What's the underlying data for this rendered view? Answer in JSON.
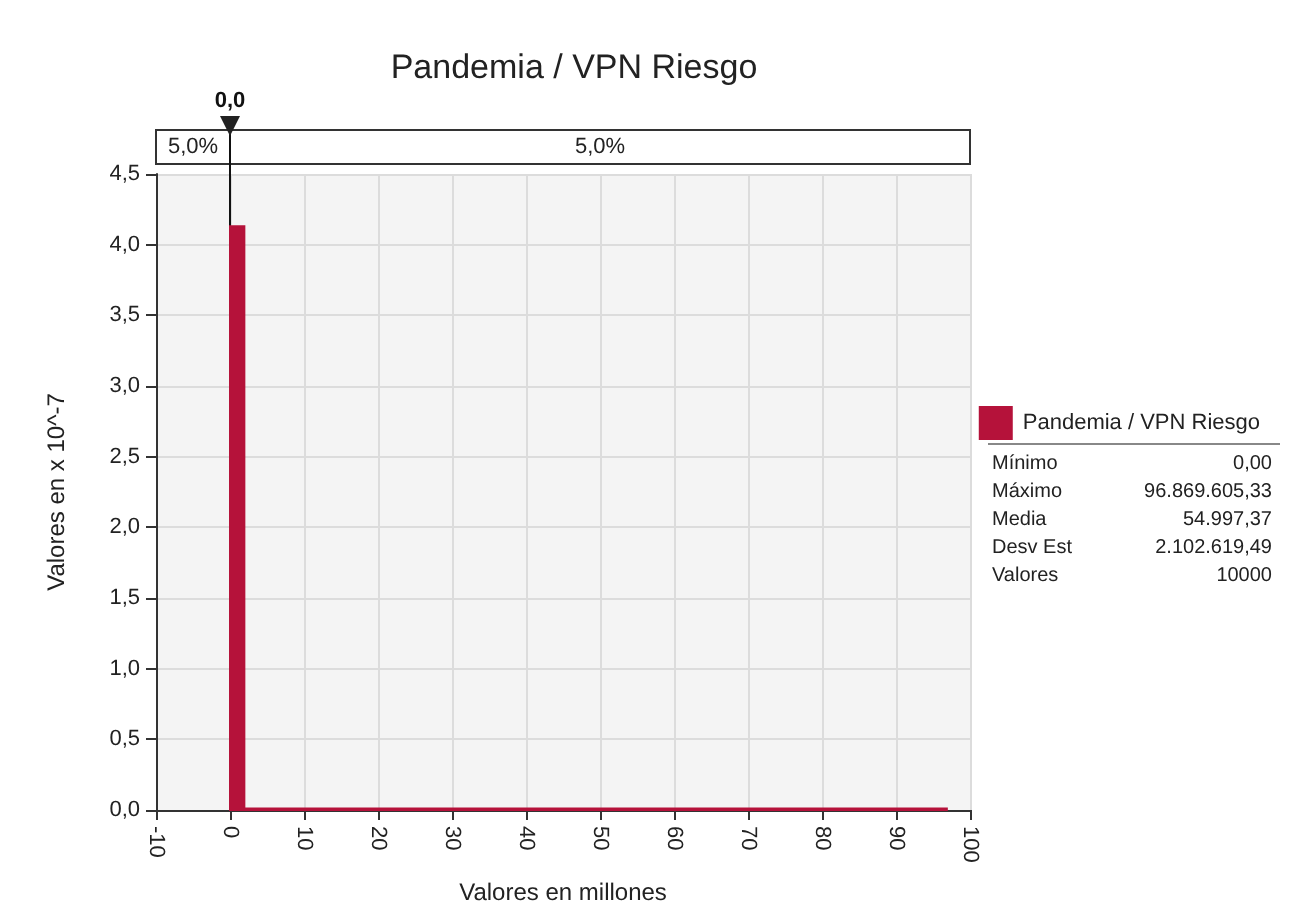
{
  "chart_data": {
    "type": "histogram",
    "title": "Pandemia / VPN Riesgo",
    "xlabel": "Valores en millones",
    "ylabel": "Valores en x 10^-7",
    "bins": [
      0,
      1.94,
      96.87
    ],
    "series": [
      {
        "name": "Pandemia / VPN Riesgo",
        "color": "#b5123a",
        "values": [
          4.13,
          0.01
        ]
      }
    ],
    "xlim": [
      -10,
      100
    ],
    "xticks": [
      -10,
      0,
      10,
      20,
      30,
      40,
      50,
      60,
      70,
      80,
      90,
      100
    ],
    "ylim": [
      0,
      4.5
    ],
    "yticks": [
      {
        "value": 0,
        "label": "0,0"
      },
      {
        "value": 0.5,
        "label": "0,5"
      },
      {
        "value": 1,
        "label": "1,0"
      },
      {
        "value": 1.5,
        "label": "1,5"
      },
      {
        "value": 2,
        "label": "2,0"
      },
      {
        "value": 2.5,
        "label": "2,5"
      },
      {
        "value": 3,
        "label": "3,0"
      },
      {
        "value": 3.5,
        "label": "3,5"
      },
      {
        "value": 4,
        "label": "4,0"
      },
      {
        "value": 4.5,
        "label": "4,5"
      }
    ],
    "ref_lines": [
      {
        "axis": "x",
        "value": 0,
        "label": "0,0"
      }
    ],
    "annotations": [
      "5,0%",
      "5,0%",
      "Mínimo",
      "0,00",
      "Máximo",
      "96.869.605,33",
      "Media",
      "54.997,37",
      "Desv Est",
      "2.102.619,49",
      "Valores",
      "10000"
    ],
    "grid": true,
    "legend": "right"
  }
}
